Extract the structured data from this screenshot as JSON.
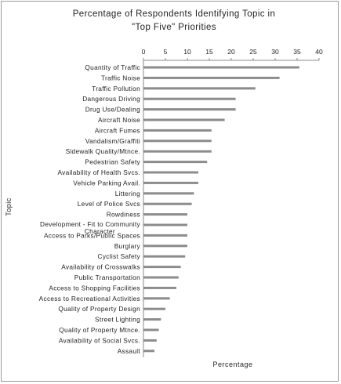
{
  "chart_data": {
    "type": "bar",
    "orientation": "horizontal",
    "title": "Percentage of Respondents Identifying Topic in \"Top Five\" Priorities",
    "title_lines": [
      "Percentage of Respondents Identifying Topic in",
      "\"Top Five\" Priorities"
    ],
    "xlabel": "Percentage",
    "ylabel": "Topic",
    "xlim": [
      0,
      40
    ],
    "xticks": [
      0,
      5,
      10,
      15,
      20,
      25,
      30,
      35,
      40
    ],
    "x_axis_position": "top",
    "grid": false,
    "bar_color": "#8c8c8c",
    "categories": [
      "Quantity of Traffic",
      "Traffic Noise",
      "Traffic Pollution",
      "Dangerous Driving",
      "Drug Use/Dealing",
      "Aircraft Noise",
      "Aircraft Fumes",
      "Vandalism/Graffiti",
      "Sidewalk Quality/Mtnce.",
      "Pedestrian Safety",
      "Availability of Health Svcs.",
      "Vehicle Parking Avail.",
      "Littering",
      "Level of Police Svcs",
      "Rowdiness",
      "Development - Fit to Community Character",
      "Access to Parks/Public Spaces",
      "Burglary",
      "Cyclist Safety",
      "Availability of Crosswalks",
      "Public Transportation",
      "Access to Shopping Facilities",
      "Access to Recreational Activities",
      "Quality of Property Design",
      "Street Lighting",
      "Quality of Property Mtnce.",
      "Availability of Social Svcs.",
      "Assault"
    ],
    "values": [
      35.5,
      31,
      25.5,
      21,
      21,
      18.5,
      15.5,
      15.5,
      15.5,
      14.5,
      12.5,
      12.5,
      11.5,
      11,
      10,
      10,
      10,
      10,
      9.5,
      8.5,
      8,
      7.5,
      6,
      5,
      4,
      3.5,
      3,
      2.5
    ]
  }
}
